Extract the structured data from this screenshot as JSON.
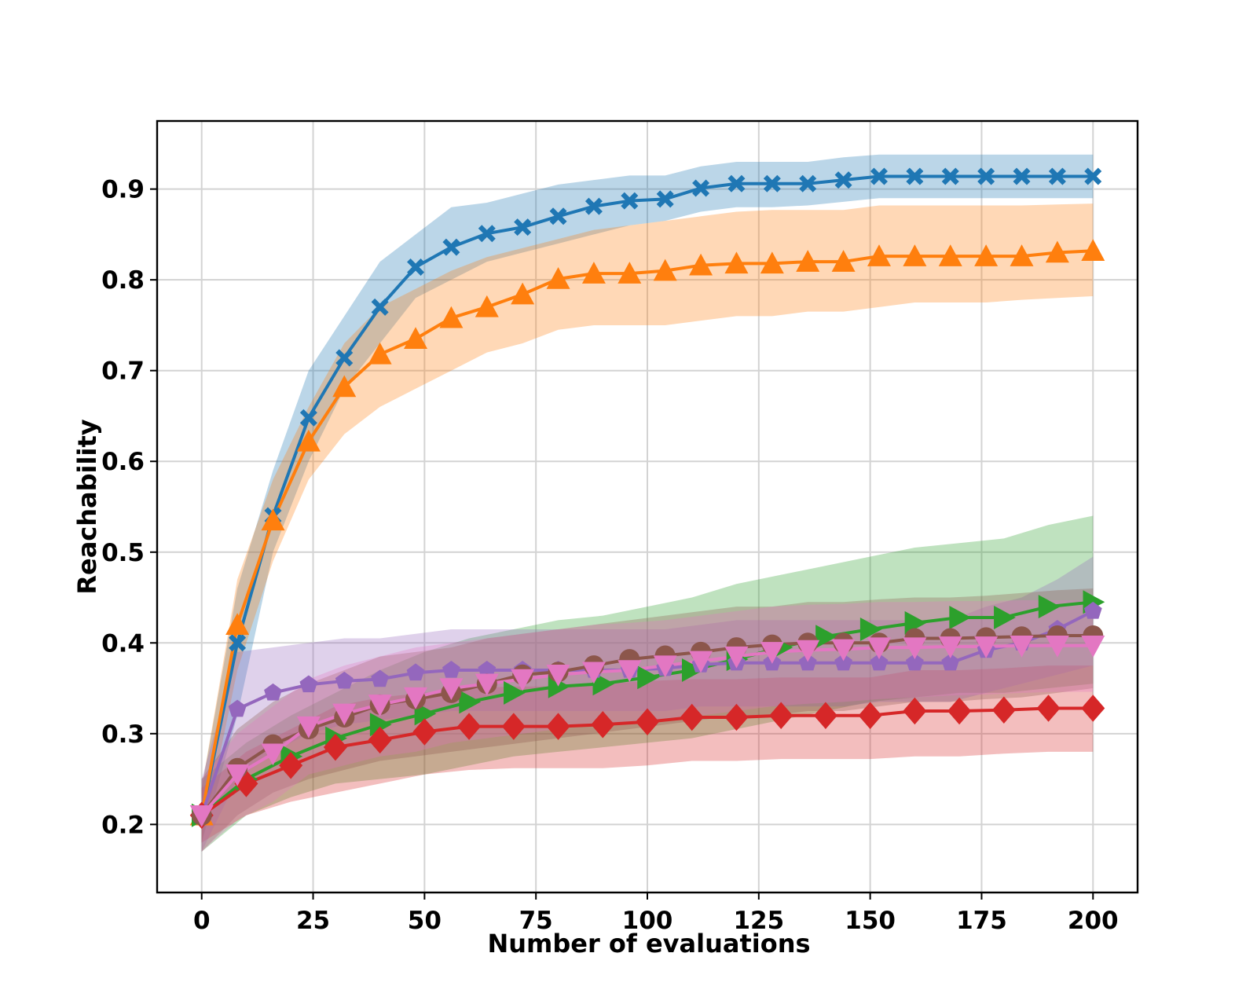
{
  "chart_data": {
    "type": "line",
    "title": "",
    "xlabel": "Number of evaluations",
    "ylabel": "Reachability",
    "xlim": [
      -10,
      210
    ],
    "ylim": [
      0.125,
      0.975
    ],
    "xticks": [
      0,
      25,
      50,
      75,
      100,
      125,
      150,
      175,
      200
    ],
    "yticks": [
      0.2,
      0.3,
      0.4,
      0.5,
      0.6,
      0.7,
      0.8,
      0.9
    ],
    "xtick_labels": [
      "0",
      "25",
      "50",
      "75",
      "100",
      "125",
      "150",
      "175",
      "200"
    ],
    "ytick_labels": [
      "0.2",
      "0.3",
      "0.4",
      "0.5",
      "0.6",
      "0.7",
      "0.8",
      "0.9"
    ],
    "grid": true,
    "legend": "none",
    "series": [
      {
        "name": "series-blue-x",
        "color": "#1f77b4",
        "marker": "x",
        "x": [
          0,
          8,
          16,
          24,
          32,
          40,
          48,
          56,
          64,
          72,
          80,
          88,
          96,
          104,
          112,
          120,
          128,
          136,
          144,
          152,
          160,
          168,
          176,
          184,
          192,
          200
        ],
        "y": [
          0.21,
          0.4,
          0.54,
          0.648,
          0.714,
          0.77,
          0.814,
          0.836,
          0.851,
          0.858,
          0.87,
          0.881,
          0.887,
          0.889,
          0.901,
          0.906,
          0.906,
          0.906,
          0.91,
          0.914,
          0.914,
          0.914,
          0.914,
          0.914,
          0.914,
          0.914
        ],
        "lower": [
          0.18,
          0.32,
          0.5,
          0.6,
          0.68,
          0.73,
          0.78,
          0.8,
          0.82,
          0.83,
          0.84,
          0.85,
          0.86,
          0.865,
          0.875,
          0.88,
          0.88,
          0.882,
          0.886,
          0.89,
          0.89,
          0.89,
          0.89,
          0.89,
          0.89,
          0.89
        ],
        "upper": [
          0.24,
          0.46,
          0.59,
          0.7,
          0.76,
          0.82,
          0.85,
          0.88,
          0.885,
          0.895,
          0.905,
          0.91,
          0.915,
          0.915,
          0.925,
          0.93,
          0.93,
          0.93,
          0.935,
          0.938,
          0.938,
          0.938,
          0.938,
          0.938,
          0.938,
          0.938
        ]
      },
      {
        "name": "series-orange-triangle",
        "color": "#ff7f0e",
        "marker": "triangle-up",
        "x": [
          0,
          8,
          16,
          24,
          32,
          40,
          48,
          56,
          64,
          72,
          80,
          88,
          96,
          104,
          112,
          120,
          128,
          136,
          144,
          152,
          160,
          168,
          176,
          184,
          192,
          200
        ],
        "y": [
          0.21,
          0.42,
          0.535,
          0.622,
          0.682,
          0.718,
          0.735,
          0.758,
          0.77,
          0.784,
          0.801,
          0.807,
          0.807,
          0.81,
          0.816,
          0.818,
          0.818,
          0.82,
          0.82,
          0.826,
          0.826,
          0.826,
          0.826,
          0.826,
          0.83,
          0.832
        ],
        "lower": [
          0.18,
          0.37,
          0.49,
          0.58,
          0.63,
          0.66,
          0.68,
          0.7,
          0.72,
          0.73,
          0.745,
          0.75,
          0.75,
          0.75,
          0.755,
          0.76,
          0.76,
          0.765,
          0.765,
          0.77,
          0.775,
          0.775,
          0.775,
          0.778,
          0.78,
          0.782
        ],
        "upper": [
          0.24,
          0.47,
          0.58,
          0.66,
          0.73,
          0.77,
          0.79,
          0.81,
          0.825,
          0.835,
          0.845,
          0.855,
          0.86,
          0.865,
          0.87,
          0.875,
          0.877,
          0.877,
          0.877,
          0.882,
          0.882,
          0.882,
          0.882,
          0.882,
          0.883,
          0.884
        ]
      },
      {
        "name": "series-green-triangle-right",
        "color": "#2ca02c",
        "marker": "triangle-right",
        "x": [
          0,
          10,
          20,
          30,
          40,
          50,
          60,
          70,
          80,
          90,
          100,
          110,
          120,
          130,
          140,
          150,
          160,
          170,
          180,
          190,
          200
        ],
        "y": [
          0.21,
          0.25,
          0.275,
          0.295,
          0.31,
          0.322,
          0.335,
          0.345,
          0.352,
          0.355,
          0.362,
          0.37,
          0.382,
          0.395,
          0.407,
          0.415,
          0.422,
          0.428,
          0.428,
          0.44,
          0.445
        ],
        "lower": [
          0.17,
          0.21,
          0.23,
          0.245,
          0.25,
          0.255,
          0.265,
          0.275,
          0.28,
          0.285,
          0.29,
          0.295,
          0.305,
          0.315,
          0.325,
          0.335,
          0.34,
          0.345,
          0.345,
          0.35,
          0.355
        ],
        "upper": [
          0.25,
          0.29,
          0.32,
          0.345,
          0.37,
          0.39,
          0.405,
          0.415,
          0.425,
          0.43,
          0.44,
          0.45,
          0.465,
          0.475,
          0.485,
          0.495,
          0.505,
          0.51,
          0.515,
          0.53,
          0.54
        ]
      },
      {
        "name": "series-red-diamond",
        "color": "#d62728",
        "marker": "diamond",
        "x": [
          0,
          10,
          20,
          30,
          40,
          50,
          60,
          70,
          80,
          90,
          100,
          110,
          120,
          130,
          140,
          150,
          160,
          170,
          180,
          190,
          200
        ],
        "y": [
          0.21,
          0.245,
          0.265,
          0.285,
          0.293,
          0.302,
          0.308,
          0.308,
          0.308,
          0.31,
          0.313,
          0.318,
          0.318,
          0.32,
          0.32,
          0.32,
          0.325,
          0.325,
          0.326,
          0.328,
          0.328
        ],
        "lower": [
          0.18,
          0.21,
          0.225,
          0.235,
          0.245,
          0.255,
          0.26,
          0.262,
          0.262,
          0.262,
          0.265,
          0.27,
          0.27,
          0.272,
          0.272,
          0.272,
          0.275,
          0.275,
          0.278,
          0.28,
          0.28
        ],
        "upper": [
          0.24,
          0.28,
          0.305,
          0.33,
          0.34,
          0.345,
          0.35,
          0.352,
          0.352,
          0.355,
          0.358,
          0.36,
          0.36,
          0.362,
          0.362,
          0.362,
          0.37,
          0.37,
          0.372,
          0.375,
          0.375
        ]
      },
      {
        "name": "series-purple-pentagon",
        "color": "#9467bd",
        "marker": "pentagon",
        "x": [
          0,
          8,
          16,
          24,
          32,
          40,
          48,
          56,
          64,
          72,
          80,
          88,
          96,
          104,
          112,
          120,
          128,
          136,
          144,
          152,
          160,
          168,
          176,
          184,
          192,
          200
        ],
        "y": [
          0.21,
          0.327,
          0.345,
          0.354,
          0.358,
          0.36,
          0.367,
          0.37,
          0.37,
          0.37,
          0.37,
          0.37,
          0.37,
          0.372,
          0.376,
          0.378,
          0.378,
          0.378,
          0.378,
          0.378,
          0.378,
          0.378,
          0.392,
          0.4,
          0.415,
          0.435
        ],
        "lower": [
          0.17,
          0.25,
          0.28,
          0.3,
          0.31,
          0.315,
          0.32,
          0.325,
          0.325,
          0.325,
          0.325,
          0.325,
          0.325,
          0.325,
          0.33,
          0.33,
          0.33,
          0.33,
          0.33,
          0.335,
          0.335,
          0.335,
          0.345,
          0.355,
          0.365,
          0.375
        ],
        "upper": [
          0.25,
          0.39,
          0.395,
          0.4,
          0.405,
          0.405,
          0.41,
          0.415,
          0.415,
          0.415,
          0.415,
          0.415,
          0.415,
          0.415,
          0.42,
          0.425,
          0.425,
          0.425,
          0.425,
          0.425,
          0.425,
          0.425,
          0.44,
          0.45,
          0.47,
          0.495
        ]
      },
      {
        "name": "series-brown-circle",
        "color": "#8c564b",
        "marker": "circle",
        "x": [
          0,
          8,
          16,
          24,
          32,
          40,
          48,
          56,
          64,
          72,
          80,
          88,
          96,
          104,
          112,
          120,
          128,
          136,
          144,
          152,
          160,
          168,
          176,
          184,
          192,
          200
        ],
        "y": [
          0.21,
          0.262,
          0.288,
          0.305,
          0.318,
          0.332,
          0.338,
          0.345,
          0.355,
          0.365,
          0.368,
          0.375,
          0.382,
          0.386,
          0.39,
          0.395,
          0.398,
          0.4,
          0.4,
          0.4,
          0.405,
          0.405,
          0.406,
          0.407,
          0.408,
          0.408
        ],
        "lower": [
          0.17,
          0.21,
          0.235,
          0.25,
          0.26,
          0.27,
          0.275,
          0.28,
          0.285,
          0.29,
          0.295,
          0.3,
          0.305,
          0.31,
          0.315,
          0.32,
          0.32,
          0.325,
          0.325,
          0.33,
          0.335,
          0.335,
          0.338,
          0.34,
          0.345,
          0.35
        ],
        "upper": [
          0.25,
          0.305,
          0.335,
          0.355,
          0.37,
          0.385,
          0.39,
          0.395,
          0.405,
          0.41,
          0.415,
          0.42,
          0.425,
          0.43,
          0.435,
          0.44,
          0.44,
          0.445,
          0.445,
          0.448,
          0.45,
          0.45,
          0.452,
          0.455,
          0.458,
          0.46
        ]
      },
      {
        "name": "series-pink-triangle-down",
        "color": "#e377c2",
        "marker": "triangle-down",
        "x": [
          0,
          8,
          16,
          24,
          32,
          40,
          48,
          56,
          64,
          72,
          80,
          88,
          96,
          104,
          112,
          120,
          128,
          136,
          144,
          152,
          160,
          168,
          176,
          184,
          192,
          200
        ],
        "y": [
          0.21,
          0.255,
          0.278,
          0.308,
          0.322,
          0.332,
          0.34,
          0.35,
          0.355,
          0.36,
          0.365,
          0.368,
          0.37,
          0.375,
          0.38,
          0.385,
          0.39,
          0.392,
          0.393,
          0.395,
          0.395,
          0.396,
          0.396,
          0.397,
          0.397,
          0.397
        ],
        "lower": [
          0.17,
          0.205,
          0.225,
          0.255,
          0.265,
          0.275,
          0.28,
          0.29,
          0.295,
          0.3,
          0.305,
          0.31,
          0.31,
          0.315,
          0.32,
          0.325,
          0.33,
          0.333,
          0.335,
          0.338,
          0.34,
          0.342,
          0.343,
          0.345,
          0.346,
          0.346
        ],
        "upper": [
          0.25,
          0.3,
          0.33,
          0.36,
          0.375,
          0.385,
          0.395,
          0.4,
          0.405,
          0.41,
          0.415,
          0.42,
          0.422,
          0.425,
          0.43,
          0.435,
          0.44,
          0.442,
          0.443,
          0.445,
          0.445,
          0.446,
          0.446,
          0.447,
          0.447,
          0.447
        ]
      }
    ]
  }
}
